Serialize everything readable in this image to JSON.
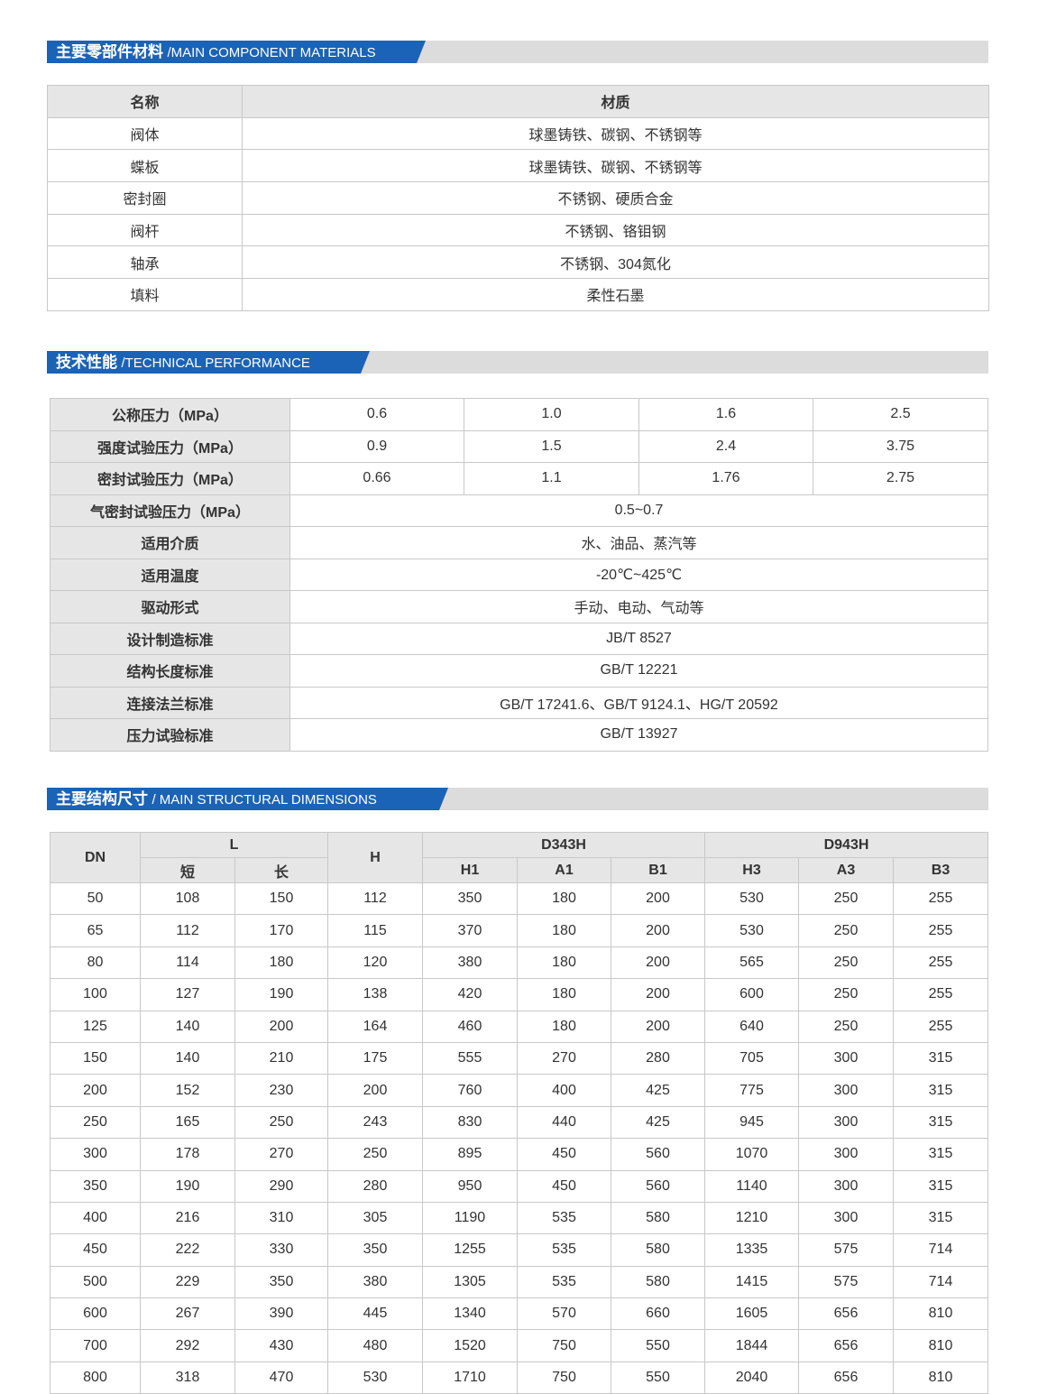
{
  "sections": [
    {
      "title_cn": "主要零部件材料",
      "title_en": "/MAIN COMPONENT MATERIALS"
    },
    {
      "title_cn": "技术性能",
      "title_en": "/TECHNICAL PERFORMANCE"
    },
    {
      "title_cn": "主要结构尺寸",
      "title_en": "/ MAIN STRUCTURAL DIMENSIONS"
    }
  ],
  "materials": {
    "header": [
      "名称",
      "材质"
    ],
    "rows": [
      [
        "阀体",
        "球墨铸铁、碳钢、不锈钢等"
      ],
      [
        "蝶板",
        "球墨铸铁、碳钢、不锈钢等"
      ],
      [
        "密封圈",
        "不锈钢、硬质合金"
      ],
      [
        "阀杆",
        "不锈钢、铬钼钢"
      ],
      [
        "轴承",
        "不锈钢、304氮化"
      ],
      [
        "填料",
        "柔性石墨"
      ]
    ]
  },
  "performance": {
    "rows": [
      {
        "label": "公称压力（MPa）",
        "values": [
          "0.6",
          "1.0",
          "1.6",
          "2.5"
        ]
      },
      {
        "label": "强度试验压力（MPa）",
        "values": [
          "0.9",
          "1.5",
          "2.4",
          "3.75"
        ]
      },
      {
        "label": "密封试验压力（MPa）",
        "values": [
          "0.66",
          "1.1",
          "1.76",
          "2.75"
        ]
      },
      {
        "label": "气密封试验压力（MPa）",
        "values": [
          "0.5~0.7"
        ]
      },
      {
        "label": "适用介质",
        "values": [
          "水、油品、蒸汽等"
        ]
      },
      {
        "label": "适用温度",
        "values": [
          "-20℃~425℃"
        ]
      },
      {
        "label": "驱动形式",
        "values": [
          "手动、电动、气动等"
        ]
      },
      {
        "label": "设计制造标准",
        "values": [
          "JB/T 8527"
        ]
      },
      {
        "label": "结构长度标准",
        "values": [
          "GB/T 12221"
        ]
      },
      {
        "label": "连接法兰标准",
        "values": [
          "GB/T 17241.6、GB/T 9124.1、HG/T 20592"
        ]
      },
      {
        "label": "压力试验标准",
        "values": [
          "GB/T 13927"
        ]
      }
    ]
  },
  "dimensions": {
    "header": {
      "dn": "DN",
      "l": "L",
      "l_cols": [
        "短",
        "长"
      ],
      "h": "H",
      "group1": "D343H",
      "group1_cols": [
        "H1",
        "A1",
        "B1"
      ],
      "group2": "D943H",
      "group2_cols": [
        "H3",
        "A3",
        "B3"
      ]
    },
    "rows": [
      [
        "50",
        "108",
        "150",
        "112",
        "350",
        "180",
        "200",
        "530",
        "250",
        "255"
      ],
      [
        "65",
        "112",
        "170",
        "115",
        "370",
        "180",
        "200",
        "530",
        "250",
        "255"
      ],
      [
        "80",
        "114",
        "180",
        "120",
        "380",
        "180",
        "200",
        "565",
        "250",
        "255"
      ],
      [
        "100",
        "127",
        "190",
        "138",
        "420",
        "180",
        "200",
        "600",
        "250",
        "255"
      ],
      [
        "125",
        "140",
        "200",
        "164",
        "460",
        "180",
        "200",
        "640",
        "250",
        "255"
      ],
      [
        "150",
        "140",
        "210",
        "175",
        "555",
        "270",
        "280",
        "705",
        "300",
        "315"
      ],
      [
        "200",
        "152",
        "230",
        "200",
        "760",
        "400",
        "425",
        "775",
        "300",
        "315"
      ],
      [
        "250",
        "165",
        "250",
        "243",
        "830",
        "440",
        "425",
        "945",
        "300",
        "315"
      ],
      [
        "300",
        "178",
        "270",
        "250",
        "895",
        "450",
        "560",
        "1070",
        "300",
        "315"
      ],
      [
        "350",
        "190",
        "290",
        "280",
        "950",
        "450",
        "560",
        "1140",
        "300",
        "315"
      ],
      [
        "400",
        "216",
        "310",
        "305",
        "1190",
        "535",
        "580",
        "1210",
        "300",
        "315"
      ],
      [
        "450",
        "222",
        "330",
        "350",
        "1255",
        "535",
        "580",
        "1335",
        "575",
        "714"
      ],
      [
        "500",
        "229",
        "350",
        "380",
        "1305",
        "535",
        "580",
        "1415",
        "575",
        "714"
      ],
      [
        "600",
        "267",
        "390",
        "445",
        "1340",
        "570",
        "660",
        "1605",
        "656",
        "810"
      ],
      [
        "700",
        "292",
        "430",
        "480",
        "1520",
        "750",
        "550",
        "1844",
        "656",
        "810"
      ],
      [
        "800",
        "318",
        "470",
        "530",
        "1710",
        "750",
        "550",
        "2040",
        "656",
        "810"
      ]
    ]
  }
}
